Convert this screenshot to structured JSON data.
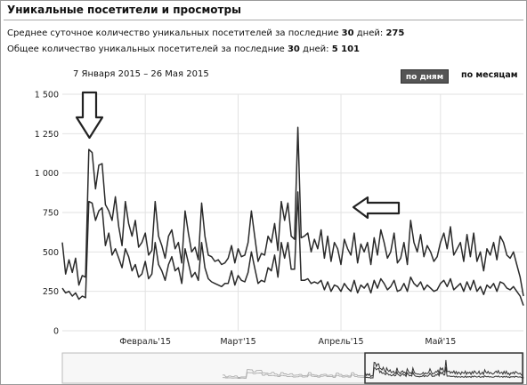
{
  "widget": {
    "title": "Уникальные посетители и просмотры",
    "stat1": {
      "label": "Среднее суточное количество уникальных посетителей за последние ",
      "days": "30",
      "mid": " дней: ",
      "value": "275"
    },
    "stat2": {
      "label": "Общее количество уникальных посетителей за последние ",
      "days": "30",
      "mid": " дней: ",
      "value": "5 101"
    },
    "date_range": "7 Января 2015 – 26 Мая 2015",
    "view_buttons": {
      "by_day": "по дням",
      "by_month": "по месяцам"
    }
  },
  "icons": {
    "arrow_down": "arrow-down-icon",
    "arrow_left": "arrow-left-icon"
  },
  "colors": {
    "line": "#2a2a2a",
    "grid": "#e2e2e2",
    "button_bg": "#555555"
  },
  "chart_data": {
    "type": "line",
    "title": "",
    "xlabel": "",
    "ylabel": "",
    "ylim": [
      0,
      1500
    ],
    "y_ticks": [
      "1 500",
      "1 250",
      "1 000",
      "750",
      "500",
      "250",
      "0"
    ],
    "y_tick_values": [
      1500,
      1250,
      1000,
      750,
      500,
      250,
      0
    ],
    "x_ticks": [
      {
        "label": "Февраль'15",
        "day": 25
      },
      {
        "label": "Март'15",
        "day": 53
      },
      {
        "label": "Апрель'15",
        "day": 84
      },
      {
        "label": "Май'15",
        "day": 114
      }
    ],
    "x_range": [
      0,
      139
    ],
    "grid": true,
    "series": [
      {
        "name": "",
        "values": [
          560,
          360,
          450,
          370,
          460,
          290,
          350,
          340,
          1150,
          1130,
          900,
          1050,
          1060,
          800,
          760,
          700,
          850,
          660,
          540,
          820,
          680,
          600,
          700,
          530,
          560,
          620,
          480,
          510,
          820,
          600,
          540,
          460,
          600,
          640,
          520,
          560,
          430,
          760,
          620,
          500,
          530,
          450,
          810,
          600,
          480,
          470,
          440,
          450,
          420,
          430,
          460,
          540,
          430,
          520,
          470,
          480,
          560,
          760,
          600,
          440,
          490,
          480,
          600,
          560,
          680,
          510,
          820,
          700,
          810,
          600,
          580,
          1290,
          590,
          600,
          620,
          500,
          580,
          520,
          640,
          460,
          600,
          440,
          560,
          520,
          420,
          580,
          520,
          480,
          620,
          430,
          550,
          500,
          560,
          420,
          590,
          480,
          640,
          560,
          460,
          500,
          620,
          430,
          460,
          560,
          420,
          700,
          560,
          500,
          610,
          470,
          540,
          500,
          440,
          470,
          560,
          620,
          520,
          660,
          480,
          520,
          560,
          440,
          610,
          470,
          620,
          440,
          500,
          380,
          520,
          480,
          560,
          450,
          600,
          560,
          480,
          460,
          500,
          420,
          340,
          220
        ]
      },
      {
        "name": "",
        "values": [
          270,
          240,
          250,
          220,
          240,
          200,
          220,
          210,
          820,
          810,
          700,
          760,
          780,
          540,
          620,
          480,
          520,
          460,
          400,
          520,
          470,
          380,
          420,
          340,
          360,
          440,
          330,
          360,
          560,
          420,
          380,
          320,
          420,
          470,
          380,
          400,
          300,
          520,
          430,
          340,
          370,
          320,
          560,
          400,
          330,
          310,
          300,
          290,
          280,
          300,
          300,
          380,
          290,
          350,
          320,
          310,
          370,
          500,
          400,
          300,
          320,
          310,
          400,
          380,
          480,
          340,
          560,
          460,
          560,
          390,
          390,
          880,
          320,
          320,
          330,
          300,
          310,
          300,
          320,
          260,
          310,
          250,
          290,
          280,
          250,
          300,
          270,
          250,
          320,
          240,
          290,
          270,
          300,
          240,
          320,
          270,
          330,
          300,
          260,
          280,
          320,
          250,
          260,
          300,
          250,
          340,
          300,
          280,
          310,
          260,
          290,
          270,
          250,
          260,
          300,
          320,
          280,
          330,
          260,
          280,
          300,
          250,
          310,
          260,
          320,
          250,
          280,
          230,
          290,
          270,
          300,
          250,
          310,
          300,
          270,
          260,
          280,
          250,
          220,
          160
        ]
      }
    ]
  }
}
